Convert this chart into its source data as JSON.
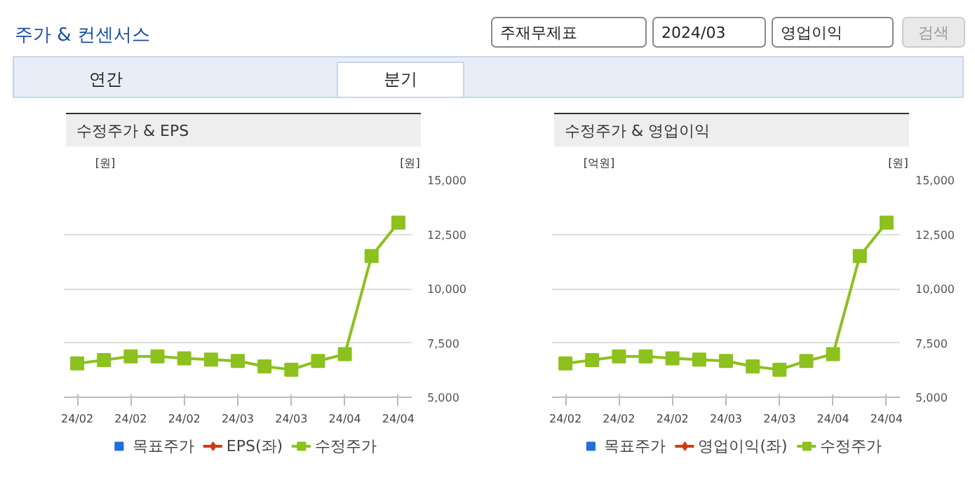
{
  "chart_data": [
    {
      "type": "other",
      "title": "주가 & 컨센서스",
      "annotations": [
        "주재무제표",
        "2024/03",
        "영업이익",
        "검색",
        "연간",
        "분기"
      ]
    },
    {
      "type": "line",
      "title": "수정주가 & EPS",
      "ylabel": "[원]",
      "y2label": "[원]",
      "categories": [
        "24/02",
        null,
        "24/02",
        null,
        "24/02",
        null,
        "24/03",
        null,
        "24/03",
        null,
        "24/04",
        null,
        "24/04"
      ],
      "y2lim": [
        5000,
        15000
      ],
      "y2ticks": [
        {
          "value": 5000,
          "label": "5,000"
        },
        {
          "value": 7500,
          "label": "7,500"
        },
        {
          "value": 10000,
          "label": "10,000"
        },
        {
          "value": 12500,
          "label": "12,500"
        },
        {
          "value": 15000,
          "label": "15,000"
        }
      ],
      "grid": "y",
      "legend": "bottom",
      "series": [
        {
          "name": "목표주가",
          "type": "scatter",
          "marker": "square",
          "color": "#1f6fde",
          "axis": "y2",
          "values": [
            null,
            null,
            null,
            null,
            null,
            null,
            null,
            null,
            null,
            null,
            null,
            null,
            null
          ]
        },
        {
          "name": "EPS(좌)",
          "type": "line",
          "marker": "diamond",
          "color": "#d03a10",
          "values": [
            null,
            null,
            null,
            null,
            null,
            null,
            null,
            null,
            null,
            null,
            null,
            null,
            null
          ]
        },
        {
          "name": "수정주가",
          "type": "line",
          "marker": "square",
          "color": "#8cc11e",
          "axis": "y2",
          "values": [
            6560,
            6710,
            6880,
            6880,
            6790,
            6730,
            6670,
            6420,
            6270,
            6670,
            6980,
            11500,
            13040
          ]
        }
      ]
    },
    {
      "type": "line",
      "title": "수정주가 & 영업이익",
      "ylabel": "[억원]",
      "y2label": "[원]",
      "categories": [
        "24/02",
        null,
        "24/02",
        null,
        "24/02",
        null,
        "24/03",
        null,
        "24/03",
        null,
        "24/04",
        null,
        "24/04"
      ],
      "y2lim": [
        5000,
        15000
      ],
      "y2ticks": [
        {
          "value": 5000,
          "label": "5,000"
        },
        {
          "value": 7500,
          "label": "7,500"
        },
        {
          "value": 10000,
          "label": "10,000"
        },
        {
          "value": 12500,
          "label": "12,500"
        },
        {
          "value": 15000,
          "label": "15,000"
        }
      ],
      "grid": "y",
      "legend": "bottom",
      "series": [
        {
          "name": "목표주가",
          "type": "scatter",
          "marker": "square",
          "color": "#1f6fde",
          "axis": "y2",
          "values": [
            null,
            null,
            null,
            null,
            null,
            null,
            null,
            null,
            null,
            null,
            null,
            null,
            null
          ]
        },
        {
          "name": "영업이익(좌)",
          "type": "line",
          "marker": "diamond",
          "color": "#d03a10",
          "values": [
            null,
            null,
            null,
            null,
            null,
            null,
            null,
            null,
            null,
            null,
            null,
            null,
            null
          ]
        },
        {
          "name": "수정주가",
          "type": "line",
          "marker": "square",
          "color": "#8cc11e",
          "axis": "y2",
          "values": [
            6560,
            6710,
            6880,
            6880,
            6790,
            6730,
            6670,
            6420,
            6270,
            6670,
            6980,
            11500,
            13040
          ]
        }
      ]
    }
  ]
}
